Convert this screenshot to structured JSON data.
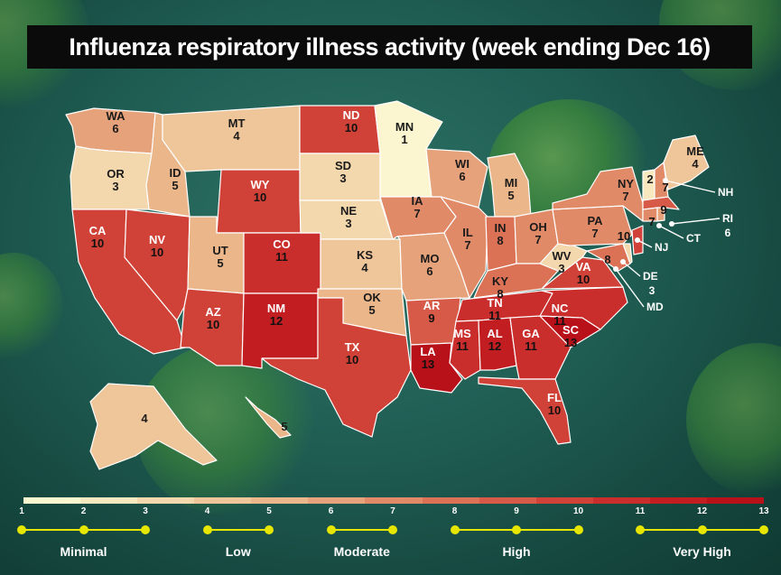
{
  "title": "Influenza respiratory illness activity  (week ending Dec 16)",
  "colors": {
    "1": "#fbf5d0",
    "2": "#f8e8bf",
    "3": "#f3d7ad",
    "4": "#efc59a",
    "5": "#ebb68a",
    "6": "#e6a27a",
    "7": "#e08a68",
    "8": "#db7256",
    "9": "#d65a47",
    "10": "#d04237",
    "11": "#c92d2c",
    "12": "#c21e22",
    "13": "#b8111a"
  },
  "states": {
    "WA": 6,
    "OR": 3,
    "CA": 10,
    "ID": 5,
    "NV": 10,
    "MT": 4,
    "WY": 10,
    "UT": 5,
    "AZ": 10,
    "CO": 11,
    "NM": 12,
    "ND": 10,
    "SD": 3,
    "NE": 3,
    "KS": 4,
    "OK": 5,
    "TX": 10,
    "MN": 1,
    "IA": 7,
    "MO": 6,
    "AR": 9,
    "LA": 13,
    "WI": 6,
    "IL": 7,
    "MI": 5,
    "IN": 8,
    "OH": 7,
    "KY": 8,
    "TN": 11,
    "MS": 11,
    "AL": 12,
    "GA": 11,
    "FL": 10,
    "SC": 13,
    "NC": 11,
    "VA": 10,
    "WV": 3,
    "PA": 7,
    "NY": 7,
    "VT": 2,
    "ME": 4,
    "NH": 7,
    "MA": 9,
    "RI": 6,
    "CT": 7,
    "NJ": 10,
    "DE": 3,
    "MD": 8,
    "AK": 4,
    "HI": 5
  },
  "legend": {
    "ticks": [
      "1",
      "2",
      "3",
      "4",
      "5",
      "6",
      "7",
      "8",
      "9",
      "10",
      "11",
      "12",
      "13"
    ],
    "categories": [
      "Minimal",
      "Low",
      "Moderate",
      "High",
      "Very High"
    ]
  }
}
